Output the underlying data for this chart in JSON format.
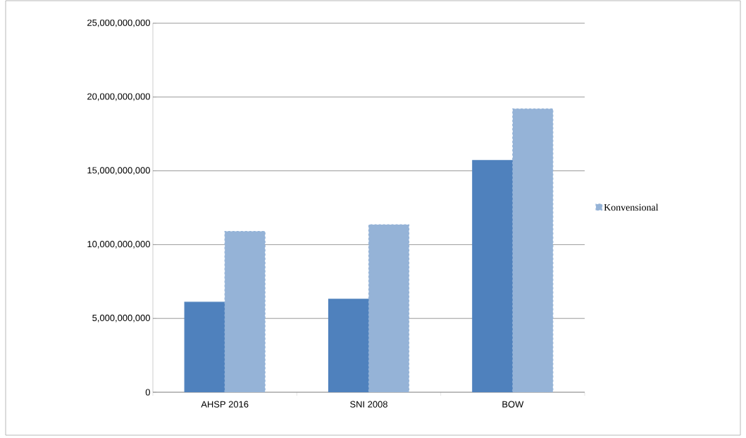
{
  "chart_data": {
    "type": "bar",
    "categories": [
      "AHSP 2016",
      "SNI 2008",
      "BOW"
    ],
    "series": [
      {
        "color": "#4f81bd",
        "values": [
          6100000000,
          6300000000,
          15700000000
        ]
      },
      {
        "name": "Konvensional",
        "color": "#95b3d7",
        "line_style": "dashed",
        "values": [
          10900000000,
          11350000000,
          19200000000
        ]
      }
    ],
    "ylim": [
      0,
      25000000000
    ],
    "yticks": [
      {
        "value": 0,
        "label": "0"
      },
      {
        "value": 5000000000,
        "label": "5,000,000,000"
      },
      {
        "value": 10000000000,
        "label": "10,000,000,000"
      },
      {
        "value": 15000000000,
        "label": "15,000,000,000"
      },
      {
        "value": 20000000000,
        "label": "20,000,000,000"
      },
      {
        "value": 25000000000,
        "label": "25,000,000,000"
      }
    ],
    "grid": "y",
    "legend": "right"
  }
}
